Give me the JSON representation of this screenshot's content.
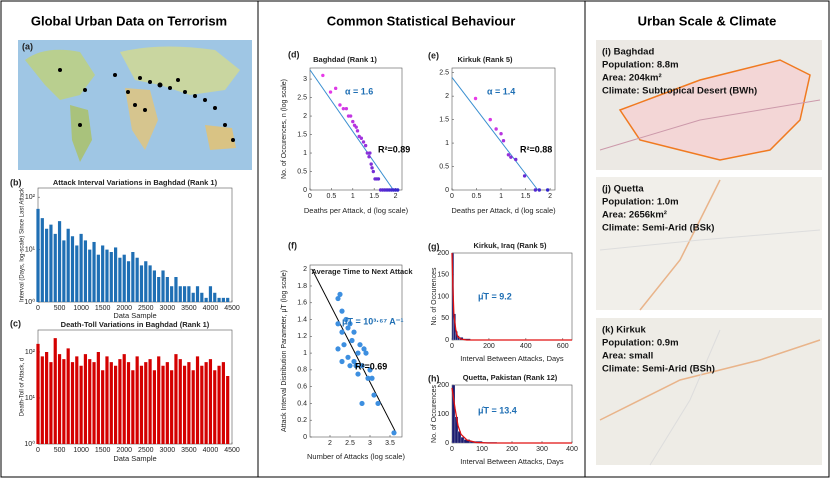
{
  "headers": [
    "Global Urban Data on Terrorism",
    "Common Statistical Behaviour",
    "Urban Scale & Climate"
  ],
  "world_map_label": "(a)",
  "city_maps": [
    {
      "label": "(i) Baghdad",
      "lines": [
        "Population: 8.8m",
        "Area: 204km²",
        "Climate: Subtropical Desert (BWh)"
      ]
    },
    {
      "label": "(j) Quetta",
      "lines": [
        "Population: 1.0m",
        "Area: 2656km²",
        "Climate: Semi-Arid (BSk)"
      ]
    },
    {
      "label": "(k) Kirkuk",
      "lines": [
        "Population: 0.9m",
        "Area: small",
        "Climate: Semi-Arid (BSh)"
      ]
    }
  ],
  "chart_data": [
    {
      "type": "spikes",
      "label": "(b)",
      "title": "Attack Interval Variations in Baghdad (Rank 1)",
      "xlabel": "Data Sample",
      "ylabel": "Interval (Days, log-scale) Since Last Attack",
      "color": "#1f6fb4",
      "log_y": true,
      "x": [
        0,
        100,
        200,
        300,
        400,
        500,
        600,
        700,
        800,
        900,
        1000,
        1100,
        1200,
        1300,
        1400,
        1500,
        1600,
        1700,
        1800,
        1900,
        2000,
        2100,
        2200,
        2300,
        2400,
        2500,
        2600,
        2700,
        2800,
        2900,
        3000,
        3100,
        3200,
        3300,
        3400,
        3500,
        3600,
        3700,
        3800,
        3900,
        4000,
        4100,
        4200,
        4300,
        4400
      ],
      "values": [
        60,
        40,
        25,
        30,
        20,
        35,
        15,
        25,
        18,
        12,
        20,
        15,
        10,
        14,
        8,
        12,
        10,
        9,
        11,
        7,
        8,
        6,
        9,
        7,
        5,
        6,
        5,
        4,
        3,
        4,
        3,
        2,
        3,
        2,
        2,
        2,
        1.5,
        2,
        1.5,
        1.2,
        2,
        1.5,
        1.2,
        1.2,
        1.2
      ],
      "xlim": [
        0,
        4500
      ],
      "xticks": [
        0,
        500,
        1000,
        1500,
        2000,
        2500,
        3000,
        3500,
        4000,
        4500
      ],
      "ylim": [
        1,
        150
      ],
      "yticks": [
        {
          "value": 1,
          "label": "10⁰"
        },
        {
          "value": 10,
          "label": "10¹"
        },
        {
          "value": 100,
          "label": "10²"
        }
      ]
    },
    {
      "type": "spikes",
      "label": "(c)",
      "title": "Death-Toll Variations in Baghdad (Rank 1)",
      "xlabel": "Data Sample",
      "ylabel": "Death-Toll of Attack, d",
      "color": "#d40000",
      "log_y": true,
      "x": [
        0,
        100,
        200,
        300,
        400,
        500,
        600,
        700,
        800,
        900,
        1000,
        1100,
        1200,
        1300,
        1400,
        1500,
        1600,
        1700,
        1800,
        1900,
        2000,
        2100,
        2200,
        2300,
        2400,
        2500,
        2600,
        2700,
        2800,
        2900,
        3000,
        3100,
        3200,
        3300,
        3400,
        3500,
        3600,
        3700,
        3800,
        3900,
        4000,
        4100,
        4200,
        4300,
        4400
      ],
      "values": [
        150,
        80,
        100,
        60,
        200,
        90,
        70,
        120,
        60,
        80,
        50,
        90,
        70,
        60,
        100,
        40,
        80,
        60,
        50,
        70,
        90,
        60,
        40,
        80,
        50,
        60,
        70,
        40,
        80,
        50,
        60,
        40,
        90,
        70,
        50,
        60,
        40,
        80,
        50,
        60,
        70,
        40,
        50,
        60,
        30
      ],
      "xlim": [
        0,
        4500
      ],
      "xticks": [
        0,
        500,
        1000,
        1500,
        2000,
        2500,
        3000,
        3500,
        4000,
        4500
      ],
      "ylim": [
        1,
        300
      ],
      "yticks": [
        {
          "value": 1,
          "label": "10⁰"
        },
        {
          "value": 10,
          "label": "10¹"
        },
        {
          "value": 100,
          "label": "10²"
        }
      ]
    },
    {
      "type": "scatter",
      "label": "(d)",
      "title": "Baghdad (Rank 1)",
      "xlabel": "Deaths per Attack, d (log scale)",
      "ylabel": "No. of Occurences, n (log scale)",
      "colors": [
        "#e83be8",
        "#3326cc"
      ],
      "line_color": "#3a8fd0",
      "x": [
        0.3,
        0.48,
        0.6,
        0.7,
        0.78,
        0.85,
        0.9,
        0.95,
        1.0,
        1.04,
        1.08,
        1.11,
        1.15,
        1.2,
        1.25,
        1.3,
        1.34,
        1.38,
        1.4,
        1.43,
        1.45,
        1.48,
        1.52,
        1.56,
        1.6,
        1.65,
        1.7,
        1.75,
        1.8,
        1.85,
        1.9,
        1.95,
        2.0,
        2.05
      ],
      "values": [
        3.1,
        2.65,
        2.75,
        2.3,
        2.2,
        2.2,
        2.0,
        2.0,
        1.85,
        1.75,
        1.7,
        1.6,
        1.45,
        1.4,
        1.3,
        1.2,
        1.0,
        0.9,
        1.0,
        0.7,
        0.6,
        0.5,
        0.3,
        0.3,
        0.3,
        0,
        0,
        0,
        0,
        0,
        0,
        0,
        0,
        0
      ],
      "fit": {
        "x": [
          0,
          1.95
        ],
        "values": [
          3.25,
          0
        ]
      },
      "annotations": [
        "α = 1.6",
        "R²=0.89"
      ],
      "xlim": [
        0,
        2.15
      ],
      "xticks": [
        0,
        0.5,
        1,
        1.5,
        2
      ],
      "ylim": [
        0,
        3.3
      ],
      "yticks": [
        0,
        0.5,
        1,
        1.5,
        2,
        2.5,
        3
      ]
    },
    {
      "type": "scatter",
      "label": "(e)",
      "title": "Kirkuk (Rank 5)",
      "xlabel": "Deaths per Attack, d (log scale)",
      "colors": [
        "#e83be8",
        "#3326cc"
      ],
      "line_color": "#3a8fd0",
      "x": [
        0.48,
        0.78,
        0.9,
        1.0,
        1.05,
        1.15,
        1.2,
        1.3,
        1.48,
        1.7,
        1.78,
        1.95
      ],
      "values": [
        1.95,
        1.5,
        1.3,
        1.2,
        1.05,
        0.75,
        0.7,
        0.65,
        0.3,
        0,
        0,
        0
      ],
      "fit": {
        "x": [
          0,
          1.75
        ],
        "values": [
          2.4,
          0
        ]
      },
      "annotations": [
        "α = 1.4",
        "R²=0.88"
      ],
      "xlim": [
        0,
        2.1
      ],
      "xticks": [
        0,
        0.5,
        1,
        1.5,
        2
      ],
      "ylim": [
        0,
        2.6
      ],
      "yticks": [
        0,
        0.5,
        1,
        1.5,
        2,
        2.5
      ]
    },
    {
      "type": "scatter",
      "label": "(f)",
      "title": "Average Time to Next Attack",
      "xlabel": "Number of Attacks (log scale)",
      "ylabel": "Attack Interval Distribution Parameter, μ̂T (log scale)",
      "colors": [
        "#3d8fe0",
        "#3d8fe0"
      ],
      "line_color": "#000000",
      "x": [
        2.2,
        2.25,
        2.3,
        2.2,
        2.3,
        2.4,
        2.2,
        2.35,
        2.45,
        2.5,
        2.3,
        2.45,
        2.55,
        2.6,
        2.5,
        2.7,
        2.6,
        2.65,
        2.75,
        2.8,
        2.85,
        2.9,
        2.7,
        2.95,
        3.0,
        3.05,
        2.8,
        3.1,
        3.2,
        3.6
      ],
      "values": [
        1.65,
        1.7,
        1.5,
        1.35,
        1.25,
        1.4,
        1.05,
        1.1,
        1.3,
        1.35,
        0.9,
        0.95,
        1.15,
        1.25,
        0.85,
        1.0,
        0.9,
        0.85,
        1.1,
        0.85,
        1.05,
        1.0,
        0.75,
        0.7,
        0.8,
        0.7,
        0.4,
        0.5,
        0.4,
        0.05
      ],
      "fit": {
        "x": [
          1.55,
          3.65
        ],
        "values": [
          2.0,
          0.05
        ]
      },
      "annotations": [
        "μ̂T = 10³·⁶⁷ A⁻¹",
        "R²=0.69"
      ],
      "xlim": [
        1.5,
        3.8
      ],
      "xticks": [
        2,
        2.5,
        3,
        3.5
      ],
      "ylim": [
        0,
        2.05
      ],
      "yticks": [
        0,
        0.2,
        0.4,
        0.6,
        0.8,
        1,
        1.2,
        1.4,
        1.6,
        1.8,
        2
      ]
    },
    {
      "type": "histogram",
      "label": "(g)",
      "title": "Kirkuk, Iraq (Rank 5)",
      "xlabel": "Interval Between Attacks, Days",
      "ylabel": "No. of Occurences",
      "color": "#1c1c6e",
      "line_color": "#e01010",
      "bins": [
        0,
        10,
        20,
        30,
        40,
        60,
        100,
        200
      ],
      "counts": [
        200,
        60,
        20,
        10,
        6,
        3,
        1
      ],
      "fit": {
        "x": [
          0,
          5,
          10,
          20,
          30,
          50,
          80,
          650
        ],
        "values": [
          200,
          120,
          60,
          25,
          8,
          2,
          0,
          0
        ]
      },
      "annotations": [
        "μ̂T = 9.2"
      ],
      "xlim": [
        0,
        650
      ],
      "xticks": [
        0,
        200,
        400,
        600
      ],
      "ylim": [
        0,
        200
      ],
      "yticks": [
        0,
        50,
        100,
        150,
        200
      ]
    },
    {
      "type": "histogram",
      "label": "(h)",
      "title": "Quetta, Pakistan (Rank 12)",
      "xlabel": "Interval Between Attacks, Days",
      "ylabel": "No. of Occurences",
      "color": "#1c1c6e",
      "line_color": "#e01010",
      "bins": [
        0,
        10,
        20,
        30,
        40,
        60,
        100,
        150,
        250
      ],
      "counts": [
        200,
        90,
        40,
        20,
        12,
        6,
        3,
        1
      ],
      "fit": {
        "x": [
          0,
          10,
          20,
          30,
          50,
          80,
          120,
          400
        ],
        "values": [
          190,
          120,
          60,
          30,
          10,
          2,
          0,
          0
        ]
      },
      "annotations": [
        "μ̂T = 13.4"
      ],
      "xlim": [
        0,
        400
      ],
      "xticks": [
        0,
        100,
        200,
        300,
        400
      ],
      "ylim": [
        0,
        200
      ],
      "yticks": [
        0,
        100,
        200
      ]
    }
  ]
}
